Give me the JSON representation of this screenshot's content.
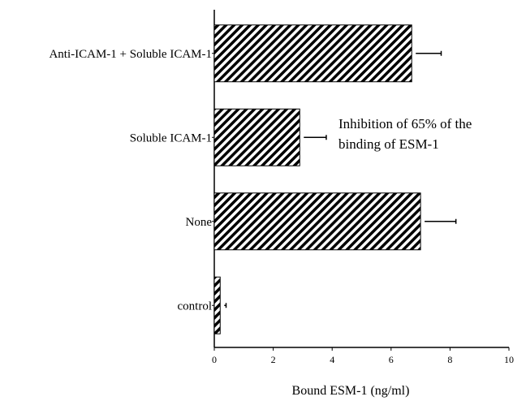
{
  "chart_data": {
    "type": "bar",
    "orientation": "horizontal",
    "categories": [
      "Anti-ICAM-1 + Soluble ICAM-1",
      "Soluble ICAM-1",
      "None",
      "control"
    ],
    "values": [
      6.7,
      2.9,
      7.0,
      0.2
    ],
    "errors": [
      1.0,
      0.9,
      1.2,
      0.2
    ],
    "xlabel": "Bound ESM-1 (ng/ml)",
    "ylabel": "",
    "xlim": [
      0,
      10
    ],
    "xticks": [
      0,
      2,
      4,
      6,
      8,
      10
    ],
    "grid": false,
    "bar_fill": "hatched",
    "bar_color": "#000000",
    "annotation": {
      "lines": [
        "Inhibition of 65% of the",
        "binding of ESM-1"
      ],
      "category": "Soluble ICAM-1"
    }
  }
}
